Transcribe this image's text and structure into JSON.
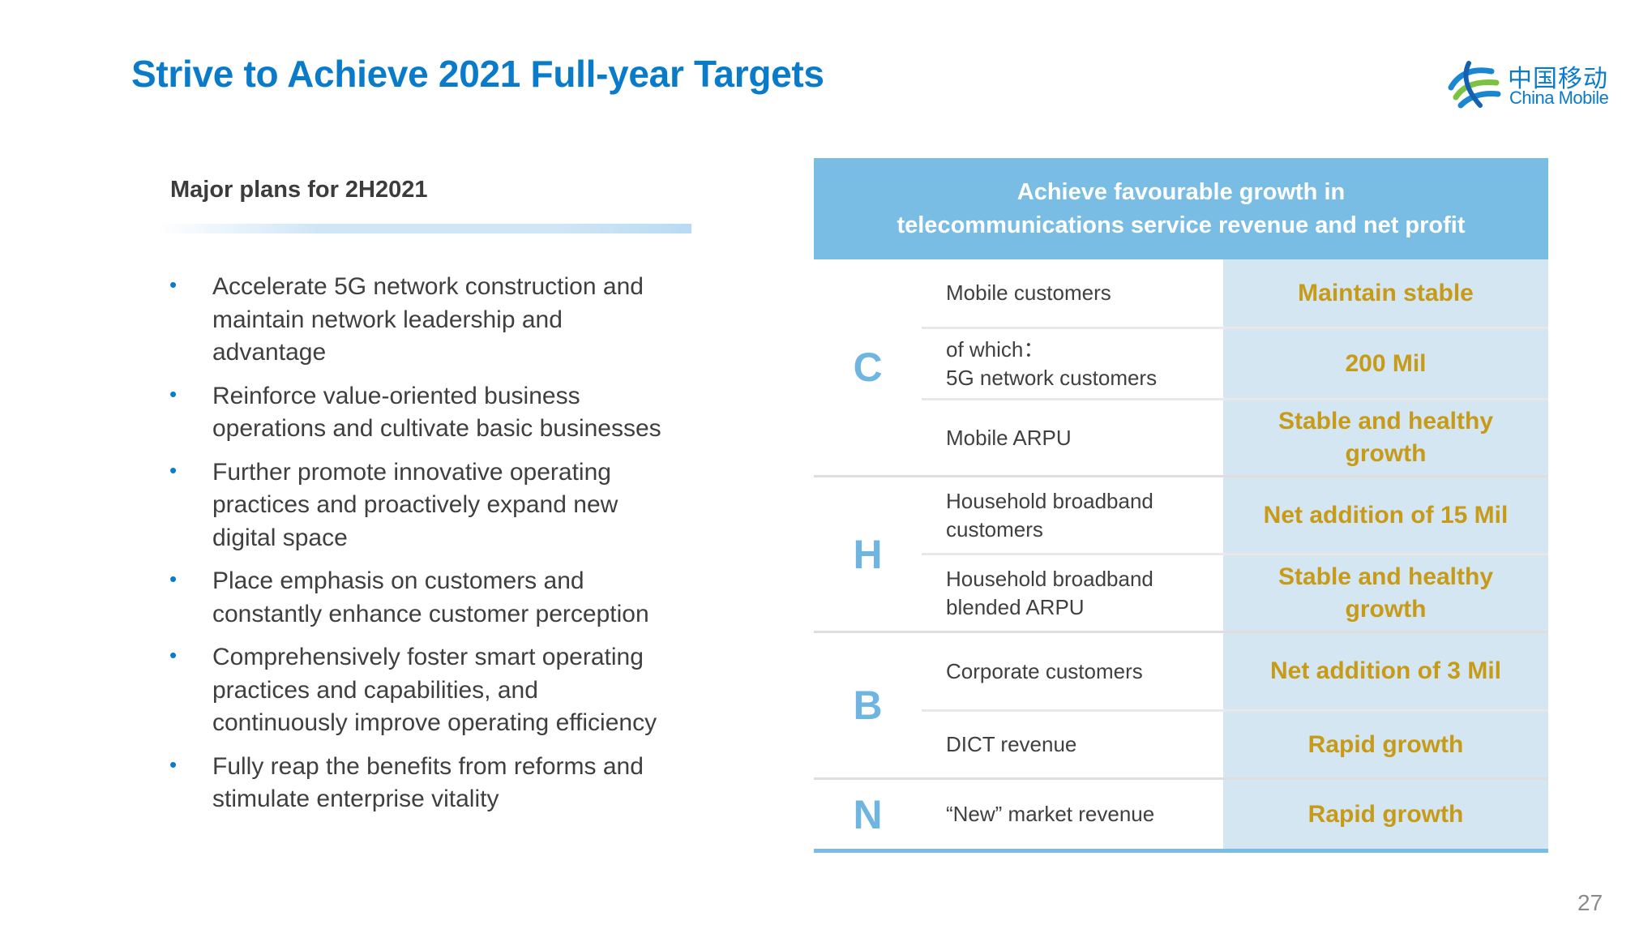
{
  "title": "Strive to Achieve 2021 Full-year Targets",
  "logo": {
    "chinese": "中国移动",
    "english": "China Mobile"
  },
  "plans": {
    "heading": "Major plans for 2H2021",
    "bullet_glyph": "•",
    "items": [
      [
        "Accelerate 5G network construction and",
        "maintain network leadership and",
        "advantage"
      ],
      [
        "Reinforce value-oriented business",
        "operations and cultivate basic businesses"
      ],
      [
        "Further promote innovative operating",
        "practices and proactively expand new",
        "digital space"
      ],
      [
        "Place emphasis on customers and",
        "constantly enhance customer perception"
      ],
      [
        "Comprehensively foster smart operating",
        "practices and capabilities, and",
        "continuously improve operating efficiency"
      ],
      [
        "Fully reap the benefits from reforms and",
        "stimulate enterprise vitality"
      ]
    ]
  },
  "targets_table": {
    "header": [
      "Achieve favourable growth in",
      "telecommunications service revenue and net profit"
    ],
    "groups": [
      {
        "letter": "C"
      },
      {
        "letter": "H"
      },
      {
        "letter": "B"
      },
      {
        "letter": "N"
      }
    ],
    "rows": [
      {
        "metric": [
          "Mobile customers"
        ],
        "target": [
          "Maintain stable"
        ]
      },
      {
        "metric": [
          "of which：",
          "5G network customers"
        ],
        "target": [
          "200 Mil"
        ]
      },
      {
        "metric": [
          "Mobile ARPU"
        ],
        "target": [
          "Stable and healthy",
          "growth"
        ]
      },
      {
        "metric": [
          "Household broadband",
          "customers"
        ],
        "target": [
          "Net addition of 15 Mil"
        ]
      },
      {
        "metric": [
          "Household broadband",
          "blended ARPU"
        ],
        "target": [
          "Stable and healthy",
          "growth"
        ]
      },
      {
        "metric": [
          "Corporate customers"
        ],
        "target": [
          "Net addition of 3 Mil"
        ]
      },
      {
        "metric": [
          "DICT revenue"
        ],
        "target": [
          "Rapid growth"
        ]
      },
      {
        "metric": [
          "“New” market revenue"
        ],
        "target": [
          "Rapid growth"
        ]
      }
    ]
  },
  "page_number": "27",
  "colors": {
    "title_blue": "#0a7bc9",
    "header_blue": "#79bde4",
    "target_bg": "#d4e6f2",
    "target_gold": "#c79a17",
    "letter_blue": "#6fb5e1"
  }
}
